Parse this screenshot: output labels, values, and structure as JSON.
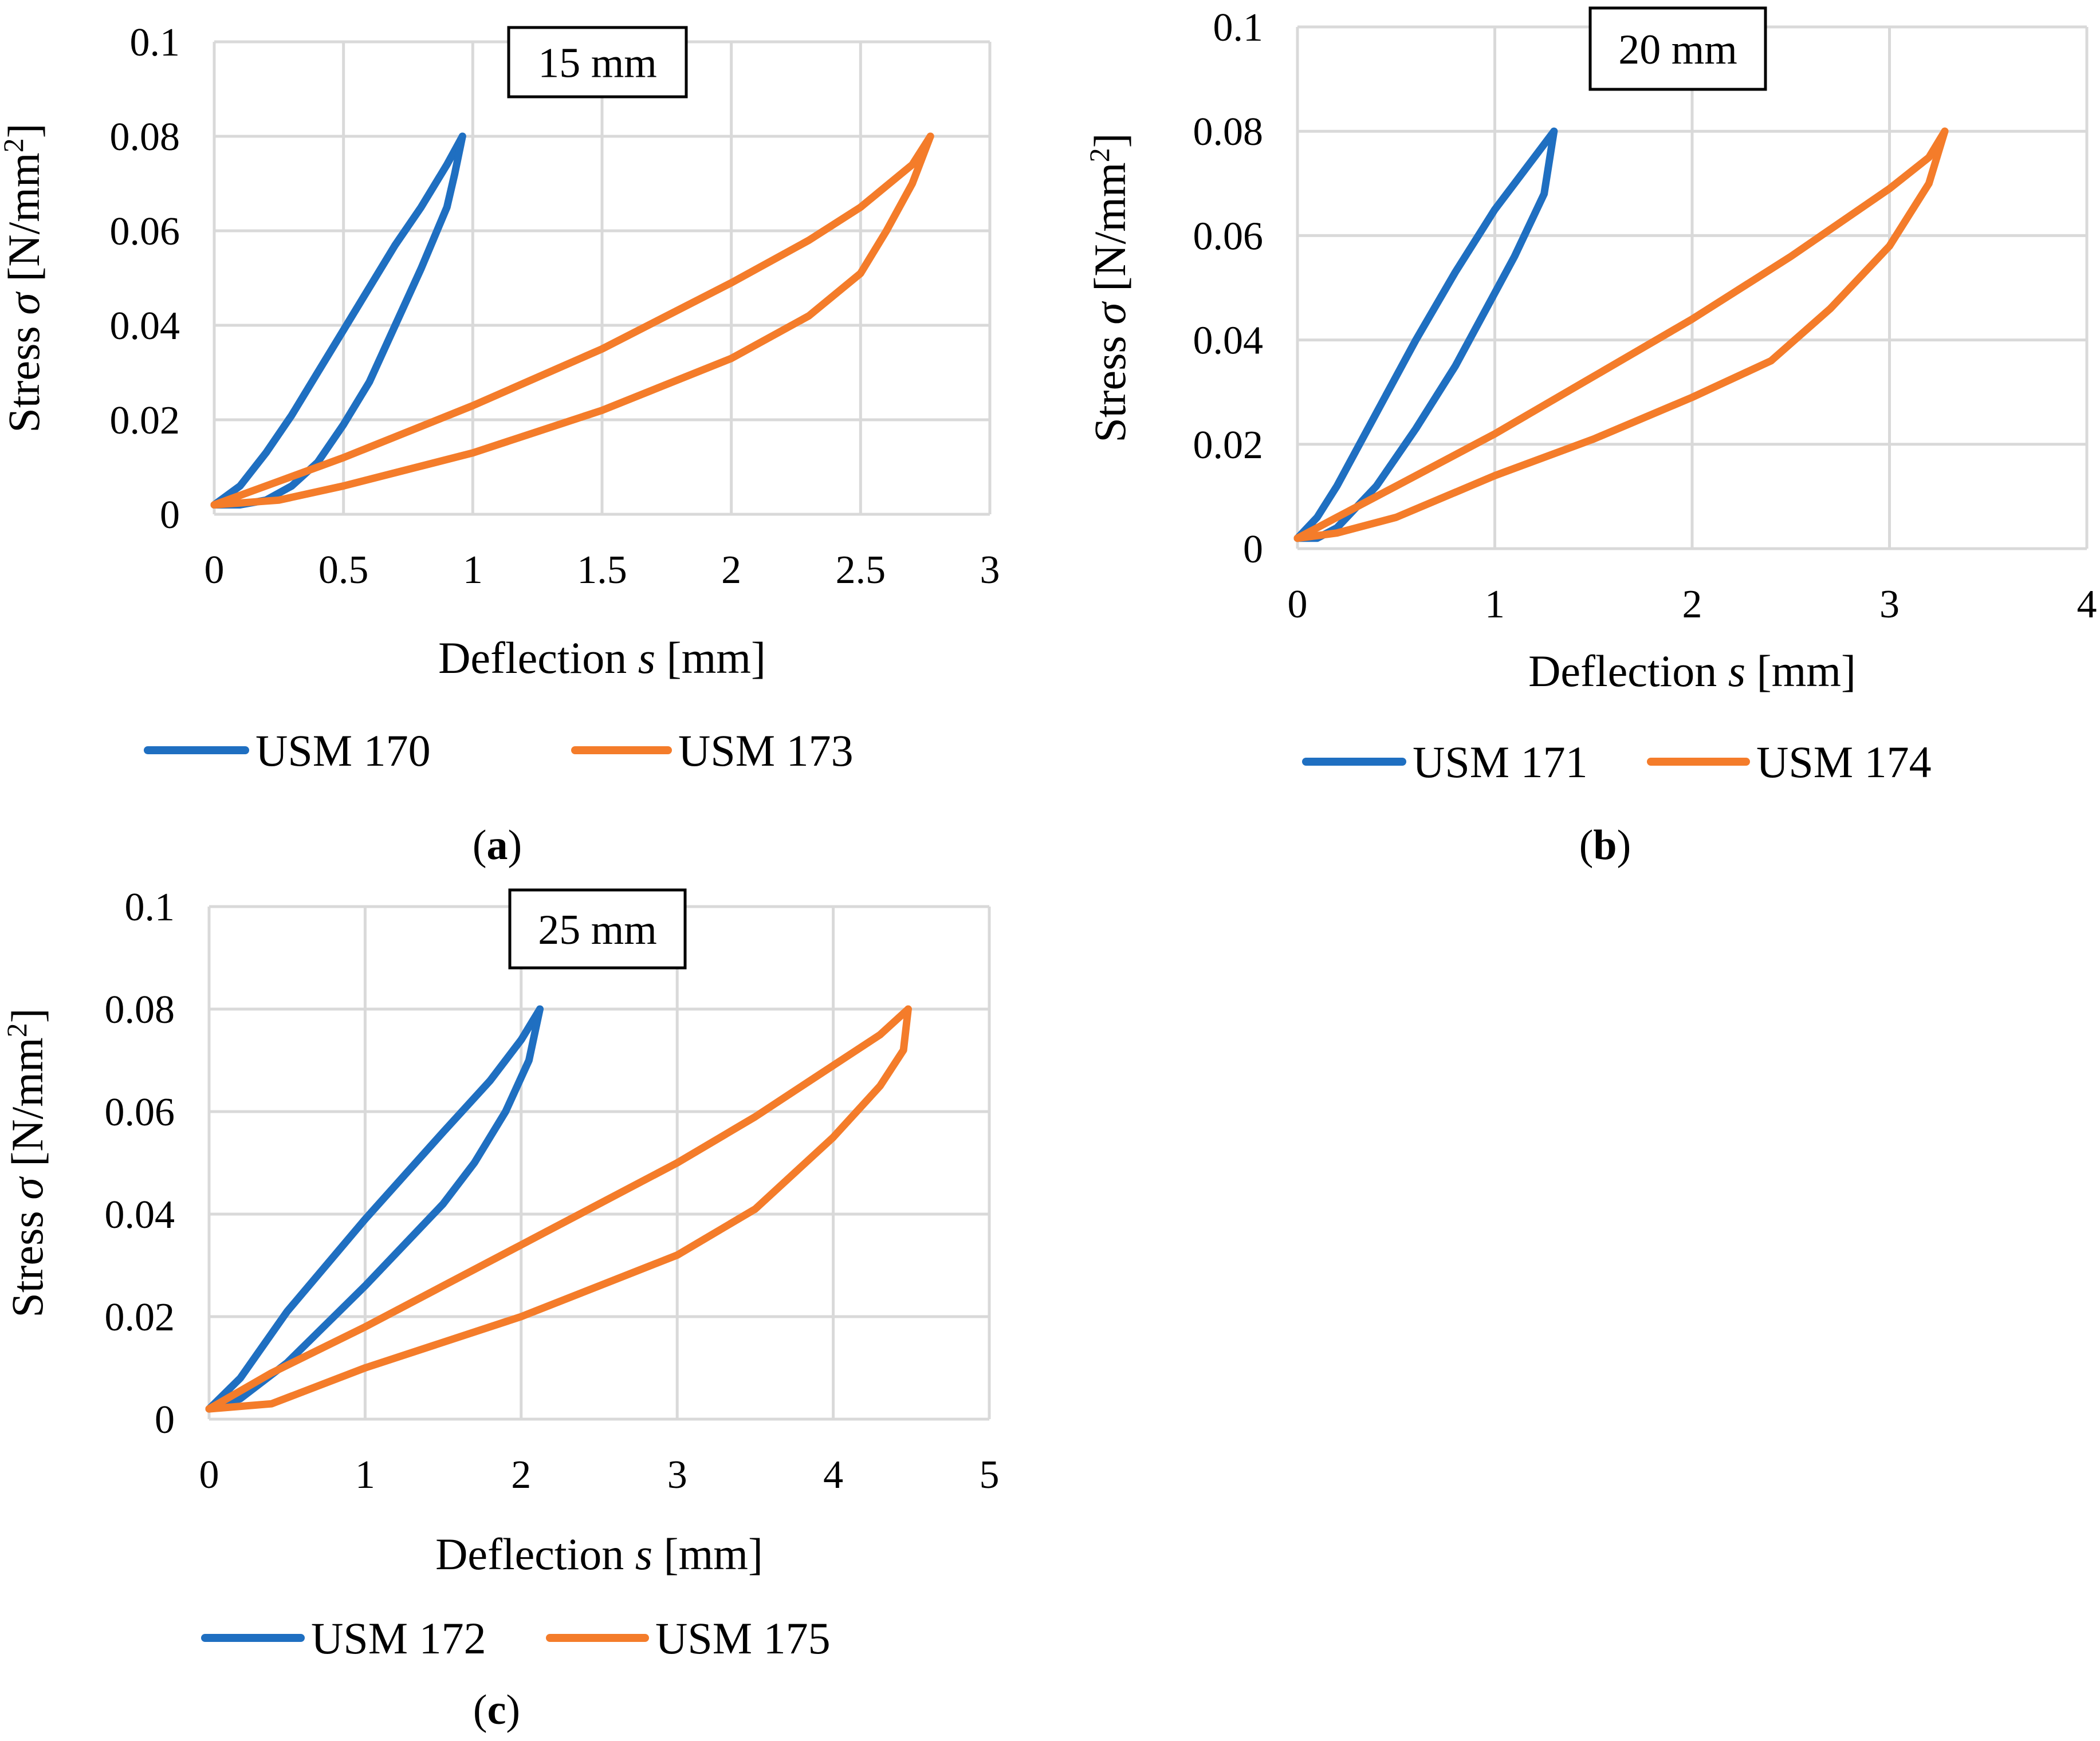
{
  "colors": {
    "blue": "#1f6fc1",
    "orange": "#f47c2a",
    "grid": "#d9d9d9"
  },
  "chart_data": [
    {
      "id": "a",
      "type": "line",
      "panel_label": "a",
      "title": "15 mm",
      "xlabel": "Deflection",
      "xlabel_symbol": "s",
      "xlabel_unit": "[mm]",
      "ylabel": "Stress",
      "ylabel_symbol": "σ",
      "ylabel_unit": "[N/mm",
      "ylabel_unit_sup": "2",
      "ylabel_unit_close": "]",
      "xlim": [
        0,
        3
      ],
      "ylim": [
        0,
        0.1
      ],
      "x_ticks": [
        "0",
        "0.5",
        "1",
        "1.5",
        "2",
        "2.5",
        "3"
      ],
      "y_ticks": [
        "0",
        "0.02",
        "0.04",
        "0.06",
        "0.08",
        "0.1"
      ],
      "grid": true,
      "legend_position": "bottom",
      "series": [
        {
          "name": "USM 170",
          "color": "#1f6fc1",
          "loading": [
            [
              0.0,
              0.002
            ],
            [
              0.1,
              0.006
            ],
            [
              0.2,
              0.013
            ],
            [
              0.3,
              0.021
            ],
            [
              0.4,
              0.03
            ],
            [
              0.5,
              0.039
            ],
            [
              0.6,
              0.048
            ],
            [
              0.7,
              0.057
            ],
            [
              0.8,
              0.065
            ],
            [
              0.9,
              0.074
            ],
            [
              0.96,
              0.08
            ]
          ],
          "unloading": [
            [
              0.96,
              0.08
            ],
            [
              0.93,
              0.072
            ],
            [
              0.9,
              0.065
            ],
            [
              0.8,
              0.052
            ],
            [
              0.7,
              0.04
            ],
            [
              0.6,
              0.028
            ],
            [
              0.5,
              0.019
            ],
            [
              0.4,
              0.011
            ],
            [
              0.3,
              0.006
            ],
            [
              0.2,
              0.003
            ],
            [
              0.1,
              0.002
            ],
            [
              0.0,
              0.002
            ]
          ]
        },
        {
          "name": "USM 173",
          "color": "#f47c2a",
          "loading": [
            [
              0.0,
              0.002
            ],
            [
              0.25,
              0.007
            ],
            [
              0.5,
              0.012
            ],
            [
              1.0,
              0.023
            ],
            [
              1.5,
              0.035
            ],
            [
              2.0,
              0.049
            ],
            [
              2.3,
              0.058
            ],
            [
              2.5,
              0.065
            ],
            [
              2.7,
              0.074
            ],
            [
              2.77,
              0.08
            ]
          ],
          "unloading": [
            [
              2.77,
              0.08
            ],
            [
              2.7,
              0.07
            ],
            [
              2.6,
              0.06
            ],
            [
              2.5,
              0.051
            ],
            [
              2.3,
              0.042
            ],
            [
              2.0,
              0.033
            ],
            [
              1.5,
              0.022
            ],
            [
              1.0,
              0.013
            ],
            [
              0.5,
              0.006
            ],
            [
              0.25,
              0.003
            ],
            [
              0.0,
              0.002
            ]
          ]
        }
      ]
    },
    {
      "id": "b",
      "type": "line",
      "panel_label": "b",
      "title": "20 mm",
      "xlabel": "Deflection",
      "xlabel_symbol": "s",
      "xlabel_unit": "[mm]",
      "ylabel": "Stress",
      "ylabel_symbol": "σ",
      "ylabel_unit": "[N/mm",
      "ylabel_unit_sup": "2",
      "ylabel_unit_close": "]",
      "xlim": [
        0,
        4
      ],
      "ylim": [
        0,
        0.1
      ],
      "x_ticks": [
        "0",
        "1",
        "2",
        "3",
        "4"
      ],
      "y_ticks": [
        "0",
        "0.02",
        "0.04",
        "0.06",
        "0.08",
        "0.1"
      ],
      "grid": true,
      "legend_position": "bottom",
      "series": [
        {
          "name": "USM 171",
          "color": "#1f6fc1",
          "loading": [
            [
              0.0,
              0.002
            ],
            [
              0.1,
              0.006
            ],
            [
              0.2,
              0.012
            ],
            [
              0.4,
              0.026
            ],
            [
              0.6,
              0.04
            ],
            [
              0.8,
              0.053
            ],
            [
              1.0,
              0.065
            ],
            [
              1.2,
              0.075
            ],
            [
              1.3,
              0.08
            ]
          ],
          "unloading": [
            [
              1.3,
              0.08
            ],
            [
              1.25,
              0.068
            ],
            [
              1.1,
              0.056
            ],
            [
              1.0,
              0.049
            ],
            [
              0.8,
              0.035
            ],
            [
              0.6,
              0.023
            ],
            [
              0.4,
              0.012
            ],
            [
              0.2,
              0.004
            ],
            [
              0.1,
              0.002
            ],
            [
              0.0,
              0.002
            ]
          ]
        },
        {
          "name": "USM 174",
          "color": "#f47c2a",
          "loading": [
            [
              0.0,
              0.002
            ],
            [
              0.2,
              0.006
            ],
            [
              0.5,
              0.012
            ],
            [
              1.0,
              0.022
            ],
            [
              1.5,
              0.033
            ],
            [
              2.0,
              0.044
            ],
            [
              2.5,
              0.056
            ],
            [
              3.0,
              0.069
            ],
            [
              3.2,
              0.075
            ],
            [
              3.28,
              0.08
            ]
          ],
          "unloading": [
            [
              3.28,
              0.08
            ],
            [
              3.2,
              0.07
            ],
            [
              3.0,
              0.058
            ],
            [
              2.7,
              0.046
            ],
            [
              2.4,
              0.036
            ],
            [
              2.0,
              0.029
            ],
            [
              1.5,
              0.021
            ],
            [
              1.0,
              0.014
            ],
            [
              0.5,
              0.006
            ],
            [
              0.2,
              0.003
            ],
            [
              0.0,
              0.002
            ]
          ]
        }
      ]
    },
    {
      "id": "c",
      "type": "line",
      "panel_label": "c",
      "title": "25 mm",
      "xlabel": "Deflection",
      "xlabel_symbol": "s",
      "xlabel_unit": "[mm]",
      "ylabel": "Stress",
      "ylabel_symbol": "σ",
      "ylabel_unit": "[N/mm",
      "ylabel_unit_sup": "2",
      "ylabel_unit_close": "]",
      "xlim": [
        0,
        5
      ],
      "ylim": [
        0,
        0.1
      ],
      "x_ticks": [
        "0",
        "1",
        "2",
        "3",
        "4",
        "5"
      ],
      "y_ticks": [
        "0",
        "0.02",
        "0.04",
        "0.06",
        "0.08",
        "0.1"
      ],
      "grid": true,
      "legend_position": "bottom",
      "series": [
        {
          "name": "USM 172",
          "color": "#1f6fc1",
          "loading": [
            [
              0.0,
              0.002
            ],
            [
              0.2,
              0.008
            ],
            [
              0.5,
              0.021
            ],
            [
              1.0,
              0.039
            ],
            [
              1.5,
              0.056
            ],
            [
              1.8,
              0.066
            ],
            [
              2.0,
              0.074
            ],
            [
              2.12,
              0.08
            ]
          ],
          "unloading": [
            [
              2.12,
              0.08
            ],
            [
              2.05,
              0.07
            ],
            [
              1.9,
              0.06
            ],
            [
              1.7,
              0.05
            ],
            [
              1.5,
              0.042
            ],
            [
              1.0,
              0.026
            ],
            [
              0.5,
              0.011
            ],
            [
              0.2,
              0.004
            ],
            [
              0.0,
              0.002
            ]
          ]
        },
        {
          "name": "USM 175",
          "color": "#f47c2a",
          "loading": [
            [
              0.0,
              0.002
            ],
            [
              0.4,
              0.009
            ],
            [
              1.0,
              0.018
            ],
            [
              1.5,
              0.026
            ],
            [
              2.0,
              0.034
            ],
            [
              3.0,
              0.05
            ],
            [
              3.5,
              0.059
            ],
            [
              4.0,
              0.069
            ],
            [
              4.3,
              0.075
            ],
            [
              4.48,
              0.08
            ]
          ],
          "unloading": [
            [
              4.48,
              0.08
            ],
            [
              4.45,
              0.072
            ],
            [
              4.3,
              0.065
            ],
            [
              4.0,
              0.055
            ],
            [
              3.5,
              0.041
            ],
            [
              3.0,
              0.032
            ],
            [
              2.5,
              0.026
            ],
            [
              2.0,
              0.02
            ],
            [
              1.0,
              0.01
            ],
            [
              0.4,
              0.003
            ],
            [
              0.0,
              0.002
            ]
          ]
        }
      ]
    }
  ]
}
